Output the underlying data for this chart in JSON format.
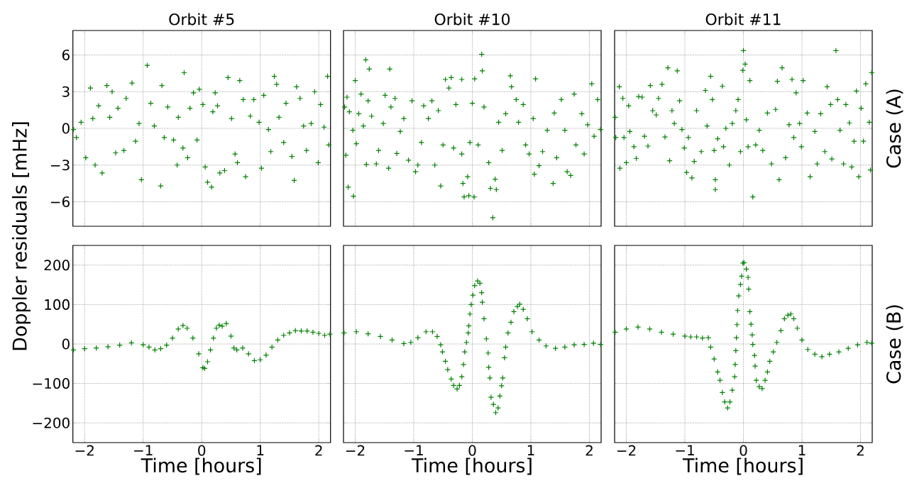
{
  "chart_data": [
    {
      "type": "scatter",
      "title": "Orbit #5",
      "ylabel": "Doppler residuals [mHz]",
      "color": "#008000",
      "marker": "cross",
      "grid": true,
      "tick_labels": "y",
      "xlim": [
        -2.2,
        2.2
      ],
      "ylim": [
        -8,
        8
      ],
      "xticks": [
        {
          "value": -2,
          "label": null
        },
        {
          "value": -1,
          "label": null
        },
        {
          "value": 0,
          "label": null
        },
        {
          "value": 1,
          "label": null
        },
        {
          "value": 2,
          "label": null
        }
      ],
      "yticks": [
        {
          "value": -6,
          "label": "−6"
        },
        {
          "value": -3,
          "label": "−3"
        },
        0,
        3,
        6
      ],
      "x": [
        -2.19,
        -2.14,
        -2.06,
        -1.98,
        -1.9,
        -1.86,
        -1.82,
        -1.76,
        -1.7,
        -1.62,
        -1.57,
        -1.53,
        -1.47,
        -1.43,
        -1.33,
        -1.29,
        -1.19,
        -1.13,
        -1.07,
        -1.03,
        -0.93,
        -0.87,
        -0.81,
        -0.7,
        -0.68,
        -0.64,
        -0.58,
        -0.48,
        -0.42,
        -0.4,
        -0.32,
        -0.3,
        -0.24,
        -0.2,
        -0.14,
        -0.08,
        -0.04,
        0.02,
        0.06,
        0.1,
        0.17,
        0.19,
        0.23,
        0.27,
        0.31,
        0.39,
        0.45,
        0.51,
        0.57,
        0.61,
        0.65,
        0.71,
        0.75,
        0.83,
        0.89,
        0.98,
        1.02,
        1.06,
        1.14,
        1.18,
        1.24,
        1.28,
        1.32,
        1.4,
        1.44,
        1.54,
        1.58,
        1.62,
        1.68,
        1.74,
        1.79,
        1.87,
        1.93,
        1.99,
        2.03,
        2.09,
        2.15,
        2.17
      ],
      "values": [
        -0.1,
        -0.75,
        0.5,
        -2.4,
        3.3,
        0.8,
        -3.0,
        1.85,
        -3.65,
        3.5,
        0.9,
        3.0,
        -2.0,
        1.65,
        -1.8,
        2.45,
        3.7,
        -1.05,
        0.4,
        -4.2,
        5.15,
        2.05,
        0.2,
        -4.7,
        3.5,
        -0.75,
        1.75,
        -0.95,
        -3.0,
        0.9,
        -1.6,
        4.55,
        -2.4,
        1.65,
        2.9,
        -0.95,
        3.2,
        1.95,
        -3.15,
        -4.4,
        -4.8,
        1.35,
        2.9,
        1.85,
        -3.65,
        -3.45,
        4.15,
        0.8,
        -2.1,
        -2.8,
        3.9,
        2.35,
        -3.95,
        1.0,
        2.35,
        0.5,
        -3.25,
        2.7,
        -0.1,
        -1.9,
        4.25,
        3.6,
        0.9,
        -1.15,
        2.05,
        -2.3,
        -4.25,
        3.4,
        2.45,
        0.2,
        -1.8,
        0.4,
        3.0,
        -2.8,
        1.95,
        0.1,
        4.25,
        -1.35
      ]
    },
    {
      "type": "scatter",
      "title": "Orbit #10",
      "color": "#008000",
      "marker": "cross",
      "grid": true,
      "tick_labels": false,
      "xlim": [
        -2.2,
        2.2
      ],
      "ylim": [
        -8,
        8
      ],
      "xticks": [
        {
          "value": -2,
          "label": null
        },
        {
          "value": -1,
          "label": null
        },
        {
          "value": 0,
          "label": null
        },
        {
          "value": 1,
          "label": null
        },
        {
          "value": 2,
          "label": null
        }
      ],
      "yticks": [
        {
          "value": -6,
          "label": null
        },
        {
          "value": -3,
          "label": null
        },
        {
          "value": 0,
          "label": null
        },
        {
          "value": 3,
          "label": null
        },
        {
          "value": 6,
          "label": null
        }
      ],
      "x": [
        -2.18,
        -2.16,
        -2.14,
        -2.12,
        -2.1,
        -2.04,
        -2.03,
        -2.0,
        -1.98,
        -1.94,
        -1.9,
        -1.86,
        -1.82,
        -1.81,
        -1.78,
        -1.76,
        -1.72,
        -1.64,
        -1.6,
        -1.52,
        -1.49,
        -1.43,
        -1.41,
        -1.39,
        -1.32,
        -1.29,
        -1.23,
        -1.17,
        -1.09,
        -1.03,
        -0.97,
        -0.93,
        -0.87,
        -0.83,
        -0.75,
        -0.69,
        -0.64,
        -0.58,
        -0.54,
        -0.5,
        -0.46,
        -0.4,
        -0.36,
        -0.32,
        -0.28,
        -0.18,
        -0.18,
        -0.16,
        -0.14,
        -0.08,
        -0.06,
        -0.04,
        0.0,
        0.03,
        0.04,
        0.1,
        0.16,
        0.17,
        0.2,
        0.28,
        0.31,
        0.35,
        0.39,
        0.41,
        0.45,
        0.51,
        0.57,
        0.65,
        0.67,
        0.75,
        0.79,
        0.87,
        0.91,
        0.97,
        1.04,
        1.06,
        1.08,
        1.14,
        1.2,
        1.28,
        1.38,
        1.4,
        1.44,
        1.52,
        1.58,
        1.62,
        1.68,
        1.74,
        1.77,
        1.87,
        1.91,
        1.97,
        2.04,
        2.08,
        2.14,
        2.19
      ],
      "values": [
        1.75,
        -2.2,
        2.55,
        -4.8,
        1.35,
        -0.15,
        -5.55,
        3.9,
        -1.25,
        1.2,
        2.8,
        0.2,
        5.6,
        -2.95,
        2.25,
        4.85,
        1.0,
        -2.9,
        -1.8,
        0.4,
        2.7,
        -3.25,
        4.85,
        1.75,
        2.45,
        -2.05,
        -0.25,
        0.8,
        -2.6,
        2.25,
        -3.55,
        -3.0,
        -1.15,
        1.85,
        0.8,
        2.25,
        -3.0,
        1.45,
        -4.7,
        -1.35,
        4.0,
        3.3,
        4.15,
        -1.6,
        1.95,
        4.0,
        -2.1,
        -4.5,
        -5.6,
        -3.95,
        -5.5,
        -1.15,
        2.05,
        -5.6,
        4.05,
        -1.35,
        6.05,
        4.7,
        1.75,
        -2.8,
        -4.9,
        -7.3,
        -4.15,
        -5.0,
        0.5,
        -1.8,
        1.2,
        4.3,
        3.4,
        2.35,
        0.5,
        1.95,
        -1.35,
        -2.1,
        0.8,
        -3.75,
        4.05,
        -3.05,
        -1.9,
        -0.15,
        -4.5,
        1.25,
        -2.4,
        2.35,
        -0.15,
        -3.55,
        -3.85,
        2.8,
        -1.35,
        1.2,
        -2.1,
        0.3,
        3.65,
        -0.65,
        2.35,
        -0.1
      ]
    },
    {
      "type": "scatter",
      "title": "Orbit #11",
      "y2label": "Case (A)",
      "color": "#008000",
      "marker": "cross",
      "grid": true,
      "tick_labels": false,
      "xlim": [
        -2.2,
        2.2
      ],
      "ylim": [
        -8,
        8
      ],
      "xticks": [
        {
          "value": -2,
          "label": null
        },
        {
          "value": -1,
          "label": null
        },
        {
          "value": 0,
          "label": null
        },
        {
          "value": 1,
          "label": null
        },
        {
          "value": 2,
          "label": null
        }
      ],
      "yticks": [
        {
          "value": -6,
          "label": null
        },
        {
          "value": -3,
          "label": null
        },
        {
          "value": 0,
          "label": null
        },
        {
          "value": 3,
          "label": null
        },
        {
          "value": 6,
          "label": null
        }
      ],
      "x": [
        -2.19,
        -2.18,
        -2.12,
        -2.11,
        -2.06,
        -2.04,
        -2.0,
        -1.96,
        -1.94,
        -1.87,
        -1.83,
        -1.79,
        -1.73,
        -1.69,
        -1.63,
        -1.59,
        -1.55,
        -1.49,
        -1.45,
        -1.39,
        -1.34,
        -1.29,
        -1.26,
        -1.22,
        -1.18,
        -1.13,
        -1.09,
        -1.05,
        -1.01,
        -0.97,
        -0.94,
        -0.88,
        -0.84,
        -0.8,
        -0.72,
        -0.65,
        -0.62,
        -0.56,
        -0.53,
        -0.5,
        -0.48,
        -0.48,
        -0.44,
        -0.36,
        -0.34,
        -0.3,
        -0.24,
        -0.19,
        -0.13,
        -0.09,
        -0.05,
        -0.01,
        0.0,
        0.03,
        0.05,
        0.08,
        0.11,
        0.16,
        0.21,
        0.27,
        0.33,
        0.41,
        0.48,
        0.55,
        0.58,
        0.61,
        0.66,
        0.72,
        0.78,
        0.83,
        0.86,
        0.9,
        0.96,
        0.99,
        1.02,
        1.09,
        1.14,
        1.22,
        1.26,
        1.32,
        1.39,
        1.43,
        1.49,
        1.51,
        1.58,
        1.61,
        1.65,
        1.71,
        1.75,
        1.81,
        1.85,
        1.89,
        1.93,
        1.97,
        2.01,
        2.05,
        2.09,
        2.15,
        2.17,
        2.19
      ],
      "values": [
        0.9,
        -0.75,
        3.4,
        -3.25,
        2.45,
        -0.75,
        -2.8,
        1.85,
        -0.25,
        -1.5,
        -2.45,
        2.6,
        2.55,
        -0.65,
        -1.45,
        3.5,
        1.45,
        1.1,
        2.45,
        3.6,
        -0.7,
        4.95,
        -2.65,
        1.45,
        0.4,
        4.7,
        2.25,
        -0.1,
        -1.6,
        -3.6,
        -0.75,
        -4.05,
        -2.7,
        1.45,
        -1.9,
        3.1,
        0.2,
        4.25,
        2.35,
        -1.8,
        -4.2,
        -5.0,
        -0.85,
        3.45,
        -1.5,
        0.0,
        -3.0,
        0.4,
        1.45,
        2.35,
        -1.9,
        4.75,
        6.35,
        5.25,
        0.7,
        -1.5,
        3.9,
        -5.6,
        -1.35,
        -0.15,
        -1.8,
        1.25,
        -2.9,
        1.55,
        3.85,
        -4.2,
        4.95,
        -2.4,
        0.3,
        4.0,
        -0.75,
        2.9,
        0.4,
        -1.5,
        3.9,
        1.25,
        -3.95,
        -0.25,
        -2.9,
        1.2,
        -1.9,
        3.4,
        1.95,
        -2.5,
        6.35,
        2.35,
        -0.15,
        -2.9,
        1.95,
        0.45,
        -3.15,
        -1.05,
        3.05,
        -3.95,
        1.65,
        -1.05,
        3.65,
        0.5,
        -3.4,
        4.55
      ]
    },
    {
      "type": "scatter",
      "xlabel": "Time [hours]",
      "color": "#008000",
      "marker": "cross",
      "grid": true,
      "xlim": [
        -2.2,
        2.2
      ],
      "ylim": [
        -250,
        250
      ],
      "xticks": [
        {
          "value": -2,
          "label": "−2"
        },
        {
          "value": -1,
          "label": "−1"
        },
        0,
        1,
        2
      ],
      "yticks": [
        {
          "value": -200,
          "label": "−200"
        },
        {
          "value": -100,
          "label": "−100"
        },
        0,
        100,
        200
      ],
      "x": [
        -2.19,
        -2.0,
        -1.8,
        -1.6,
        -1.4,
        -1.2,
        -1.0,
        -0.9,
        -0.8,
        -0.7,
        -0.6,
        -0.5,
        -0.4,
        -0.32,
        -0.25,
        -0.15,
        -0.05,
        0.02,
        0.05,
        0.1,
        0.15,
        0.2,
        0.25,
        0.3,
        0.35,
        0.42,
        0.5,
        0.55,
        0.6,
        0.7,
        0.8,
        0.9,
        1.0,
        1.1,
        1.2,
        1.3,
        1.4,
        1.5,
        1.6,
        1.7,
        1.8,
        1.9,
        2.0,
        2.1,
        2.19
      ],
      "values": [
        -15,
        -12,
        -10,
        -7,
        -3,
        3,
        -2,
        -8,
        -15,
        -12,
        -3,
        15,
        38,
        47,
        40,
        15,
        -25,
        -60,
        -62,
        -45,
        -15,
        15,
        40,
        48,
        45,
        52,
        20,
        -10,
        -15,
        -10,
        -25,
        -42,
        -40,
        -28,
        -8,
        10,
        22,
        28,
        34,
        33,
        33,
        30,
        27,
        22,
        25
      ]
    },
    {
      "type": "scatter",
      "xlabel": "Time [hours]",
      "color": "#008000",
      "marker": "cross",
      "grid": true,
      "tick_labels": "x",
      "xlim": [
        -2.2,
        2.2
      ],
      "ylim": [
        -250,
        250
      ],
      "xticks": [
        {
          "value": -2,
          "label": "−2"
        },
        {
          "value": -1,
          "label": "−1"
        },
        0,
        1,
        2
      ],
      "yticks": [
        {
          "value": -200,
          "label": null
        },
        {
          "value": -100,
          "label": null
        },
        {
          "value": 0,
          "label": null
        },
        {
          "value": 100,
          "label": null
        },
        {
          "value": 200,
          "label": null
        }
      ],
      "x": [
        -2.19,
        -1.98,
        -1.78,
        -1.57,
        -1.37,
        -1.17,
        -1.05,
        -0.93,
        -0.79,
        -0.68,
        -0.6,
        -0.54,
        -0.51,
        -0.46,
        -0.42,
        -0.36,
        -0.32,
        -0.26,
        -0.22,
        -0.18,
        -0.15,
        -0.13,
        -0.1,
        -0.07,
        -0.06,
        -0.04,
        -0.02,
        0.01,
        0.04,
        0.09,
        0.13,
        0.16,
        0.17,
        0.2,
        0.24,
        0.27,
        0.28,
        0.3,
        0.32,
        0.36,
        0.4,
        0.44,
        0.47,
        0.5,
        0.52,
        0.55,
        0.57,
        0.61,
        0.66,
        0.71,
        0.77,
        0.81,
        0.87,
        0.94,
        1.02,
        1.14,
        1.26,
        1.42,
        1.58,
        1.74,
        1.91,
        2.07,
        2.19
      ],
      "values": [
        28,
        31,
        26,
        19,
        10,
        1,
        4,
        16,
        31,
        31,
        19,
        -2,
        -20,
        -44,
        -65,
        -89,
        -105,
        -114,
        -105,
        -83,
        -52,
        -20,
        4,
        28,
        46,
        76,
        100,
        124,
        148,
        160,
        154,
        130,
        106,
        64,
        13,
        -23,
        -59,
        -86,
        -135,
        -153,
        -174,
        -162,
        -132,
        -106,
        -86,
        -35,
        -8,
        28,
        55,
        82,
        95,
        101,
        88,
        64,
        31,
        10,
        -5,
        -11,
        -8,
        -2,
        -1,
        2,
        -1
      ]
    },
    {
      "type": "scatter",
      "xlabel": "Time [hours]",
      "y2label": "Case (B)",
      "color": "#008000",
      "marker": "cross",
      "grid": true,
      "tick_labels": "x",
      "xlim": [
        -2.2,
        2.2
      ],
      "ylim": [
        -250,
        250
      ],
      "xticks": [
        {
          "value": -2,
          "label": "−2"
        },
        {
          "value": -1,
          "label": "−1"
        },
        0,
        1,
        2
      ],
      "yticks": [
        {
          "value": -200,
          "label": null
        },
        {
          "value": -100,
          "label": null
        },
        {
          "value": 0,
          "label": null
        },
        {
          "value": 100,
          "label": null
        },
        {
          "value": 200,
          "label": null
        }
      ],
      "x": [
        -2.19,
        -2.0,
        -1.8,
        -1.6,
        -1.4,
        -1.2,
        -1.0,
        -0.9,
        -0.8,
        -0.7,
        -0.6,
        -0.56,
        -0.5,
        -0.44,
        -0.4,
        -0.36,
        -0.32,
        -0.27,
        -0.23,
        -0.19,
        -0.15,
        -0.14,
        -0.13,
        -0.12,
        -0.11,
        -0.1,
        -0.08,
        -0.05,
        -0.03,
        -0.01,
        0.01,
        0.05,
        0.08,
        0.09,
        0.11,
        0.13,
        0.15,
        0.16,
        0.19,
        0.2,
        0.22,
        0.27,
        0.32,
        0.37,
        0.41,
        0.45,
        0.51,
        0.57,
        0.64,
        0.7,
        0.76,
        0.81,
        0.86,
        0.92,
        1.0,
        1.1,
        1.22,
        1.34,
        1.47,
        1.63,
        1.79,
        1.95,
        2.11,
        2.19
      ],
      "values": [
        30,
        38,
        43,
        38,
        30,
        25,
        20,
        18,
        18,
        15,
        16,
        -8,
        -38,
        -71,
        -92,
        -123,
        -147,
        -162,
        -147,
        -117,
        -83,
        -52,
        -17,
        16,
        49,
        85,
        122,
        151,
        172,
        205,
        206,
        190,
        169,
        139,
        82,
        50,
        23,
        -1,
        -29,
        -56,
        -92,
        -108,
        -113,
        -92,
        -71,
        -44,
        -20,
        4,
        34,
        64,
        73,
        76,
        64,
        40,
        10,
        -14,
        -26,
        -32,
        -26,
        -20,
        -11,
        -2,
        4,
        2
      ]
    }
  ]
}
